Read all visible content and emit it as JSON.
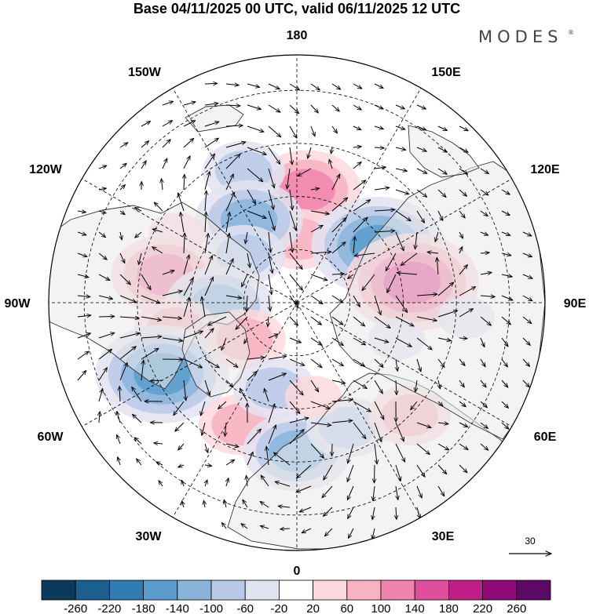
{
  "title": "Base 04/11/2025 00 UTC, valid 06/11/2025 12 UTC",
  "brand": {
    "name": "MODES",
    "mark": "®"
  },
  "longitude_labels": [
    "180",
    "150E",
    "120E",
    "90E",
    "60E",
    "30E",
    "0",
    "30W",
    "60W",
    "90W",
    "120W",
    "150W"
  ],
  "reference_vector": {
    "label": "30"
  },
  "colorbar": {
    "colors": [
      "#0c3a5c",
      "#1a5f8f",
      "#2f7cb4",
      "#5a9ccb",
      "#88b4da",
      "#b9c9e6",
      "#e2e3f1",
      "#ffffff",
      "#fbd8de",
      "#f8b2c1",
      "#f184ad",
      "#e04f9c",
      "#c01f88",
      "#8f0a76",
      "#5c0a66"
    ],
    "tick_labels": [
      "-260",
      "-220",
      "-180",
      "-140",
      "-100",
      "-60",
      "-20",
      "20",
      "60",
      "100",
      "140",
      "180",
      "220",
      "260"
    ]
  },
  "anomaly_centers": [
    {
      "lon": 175,
      "lat": 58,
      "value": 115
    },
    {
      "lon": 178,
      "lat": 72,
      "value": 95
    },
    {
      "lon": 125,
      "lat": 62,
      "value": -150
    },
    {
      "lon": 100,
      "lat": 57,
      "value": 175
    },
    {
      "lon": -158,
      "lat": 50,
      "value": -85
    },
    {
      "lon": -150,
      "lat": 63,
      "value": -105
    },
    {
      "lon": -120,
      "lat": 51,
      "value": 45
    },
    {
      "lon": -132,
      "lat": 70,
      "value": -75
    },
    {
      "lon": -102,
      "lat": 52,
      "value": 115
    },
    {
      "lon": -88,
      "lat": 68,
      "value": -120
    },
    {
      "lon": -78,
      "lat": 55,
      "value": 85
    },
    {
      "lon": -62,
      "lat": 47,
      "value": -160
    },
    {
      "lon": -55,
      "lat": 72,
      "value": 65
    },
    {
      "lon": -25,
      "lat": 52,
      "value": 80
    },
    {
      "lon": -15,
      "lat": 65,
      "value": -70
    },
    {
      "lon": 0,
      "lat": 48,
      "value": -110
    },
    {
      "lon": 22,
      "lat": 52,
      "value": -80
    },
    {
      "lon": 10,
      "lat": 63,
      "value": 55
    },
    {
      "lon": 45,
      "lat": 45,
      "value": 60
    },
    {
      "lon": 70,
      "lat": 60,
      "value": -45
    },
    {
      "lon": 85,
      "lat": 42,
      "value": -40
    }
  ]
}
